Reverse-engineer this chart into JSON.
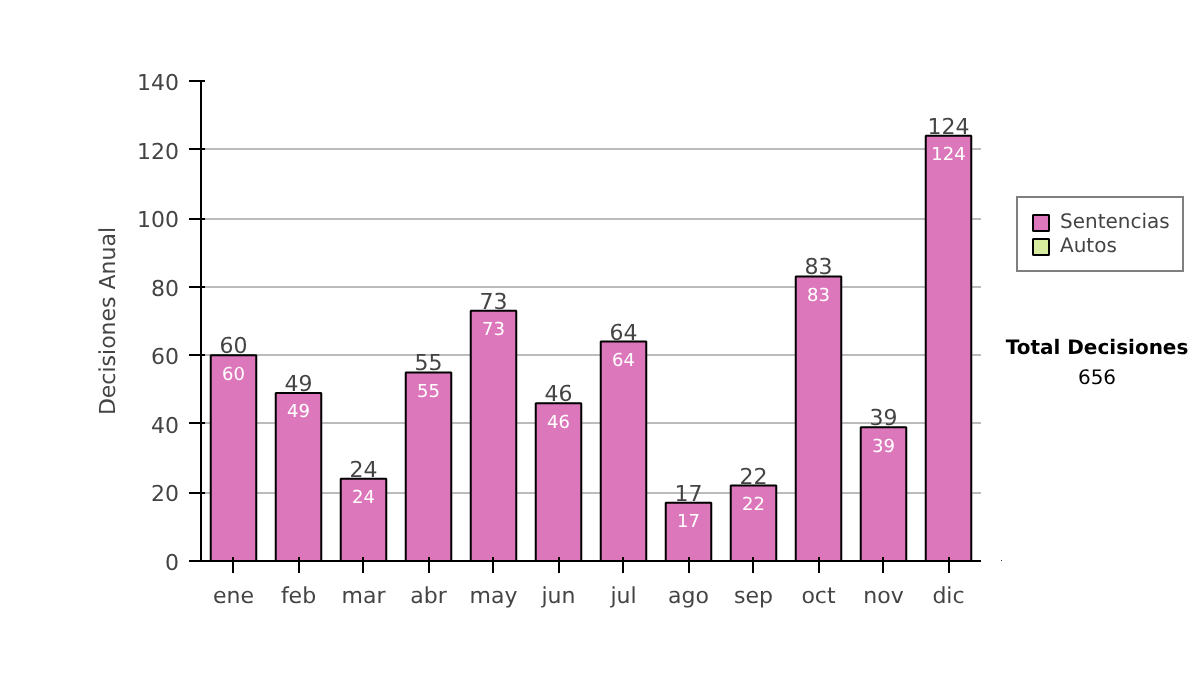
{
  "chart_data": {
    "type": "bar",
    "stacked": true,
    "ylabel": "Decisiones Anual",
    "categories": [
      "ene",
      "feb",
      "mar",
      "abr",
      "may",
      "jun",
      "jul",
      "ago",
      "sep",
      "oct",
      "nov",
      "dic"
    ],
    "series": [
      {
        "name": "Sentencias",
        "color": "#dd77bb",
        "values": [
          60,
          49,
          24,
          55,
          73,
          46,
          64,
          17,
          22,
          83,
          39,
          124
        ]
      },
      {
        "name": "Autos",
        "color": "#d8eca0",
        "values": [
          null,
          null,
          null,
          null,
          null,
          null,
          null,
          null,
          null,
          null,
          null,
          null
        ]
      }
    ],
    "data_labels": true,
    "totals": [
      "60",
      "49",
      "24",
      "55",
      "73",
      "46",
      "64",
      "17",
      "22",
      "83",
      "39",
      "124"
    ],
    "ylim": [
      0,
      140
    ],
    "yticks": [
      0,
      20,
      40,
      60,
      80,
      100,
      120,
      140
    ],
    "grid": "y",
    "legend": "right",
    "annotations": [
      "Total Decisiones",
      "656"
    ]
  }
}
